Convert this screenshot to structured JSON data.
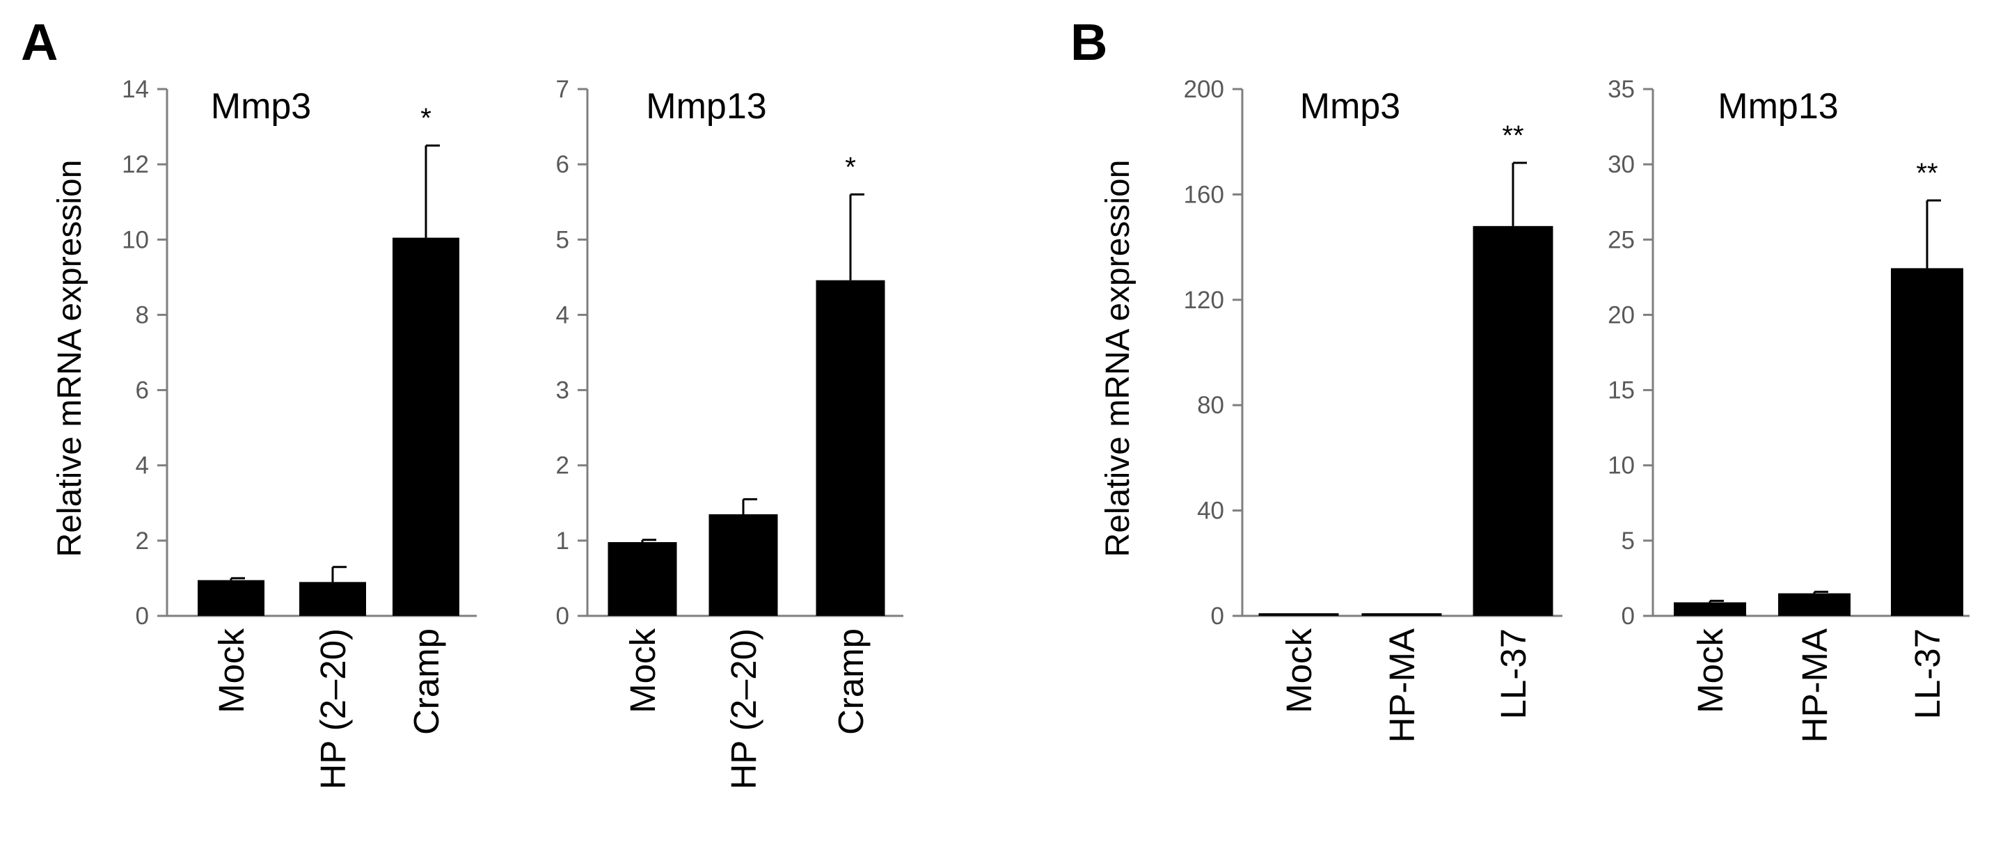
{
  "figure": {
    "panels": [
      {
        "id": "A",
        "ylabel": "Relative  mRNA  expression"
      },
      {
        "id": "B",
        "ylabel": "Relative  mRNA  expression"
      }
    ]
  },
  "colors": {
    "bar": "#000000",
    "axis": "#7f7f7f",
    "tick_label": "#595959"
  },
  "chart_data": [
    {
      "type": "bar",
      "panel": "A",
      "title": "Mmp3",
      "ylabel": "Relative  mRNA  expression",
      "categories": [
        "Mock",
        "HP (2–20)",
        "Cramp"
      ],
      "values": [
        0.95,
        0.9,
        10.05
      ],
      "errors": [
        0.05,
        0.4,
        2.45
      ],
      "significance": [
        "",
        "",
        "*"
      ],
      "ylim": [
        0,
        14
      ],
      "yticks": [
        0,
        2,
        4,
        6,
        8,
        10,
        12,
        14
      ],
      "grid": false
    },
    {
      "type": "bar",
      "panel": "A",
      "title": "Mmp13",
      "ylabel": "",
      "categories": [
        "Mock",
        "HP (2–20)",
        "Cramp"
      ],
      "values": [
        0.98,
        1.35,
        4.46
      ],
      "errors": [
        0.03,
        0.2,
        1.14
      ],
      "significance": [
        "",
        "",
        "*"
      ],
      "ylim": [
        0,
        7
      ],
      "yticks": [
        0,
        1,
        2,
        3,
        4,
        5,
        6,
        7
      ],
      "grid": false
    },
    {
      "type": "bar",
      "panel": "B",
      "title": "Mmp3",
      "ylabel": "Relative  mRNA  expression",
      "categories": [
        "Mock",
        "HP-MA",
        "LL-37"
      ],
      "values": [
        1,
        1,
        148
      ],
      "errors": [
        0,
        0,
        24
      ],
      "significance": [
        "",
        "",
        "**"
      ],
      "ylim": [
        0,
        200
      ],
      "yticks": [
        0,
        40,
        80,
        120,
        160,
        200
      ],
      "grid": false
    },
    {
      "type": "bar",
      "panel": "B",
      "title": "Mmp13",
      "ylabel": "",
      "categories": [
        "Mock",
        "HP-MA",
        "LL-37"
      ],
      "values": [
        0.9,
        1.5,
        23.1
      ],
      "errors": [
        0.1,
        0.1,
        4.5
      ],
      "significance": [
        "",
        "",
        "**"
      ],
      "ylim": [
        0,
        35
      ],
      "yticks": [
        0,
        5,
        10,
        15,
        20,
        25,
        30,
        35
      ],
      "grid": false
    }
  ]
}
